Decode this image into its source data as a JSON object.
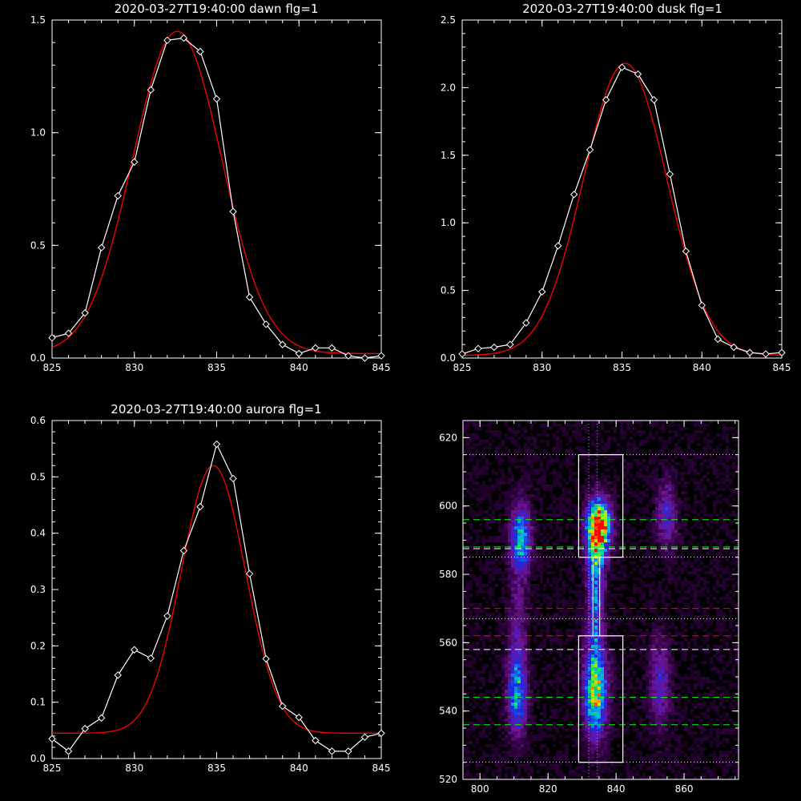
{
  "colors": {
    "background": "#000000",
    "axes": "#ffffff",
    "data_line": "#ffffff",
    "fit_line": "#ff0000",
    "green_guides": "#00ff00",
    "red_guides": "#ff0000"
  },
  "chart_data": [
    {
      "type": "line",
      "title": "2020-03-27T19:40:00 dawn flg=1",
      "xlim": [
        825,
        845
      ],
      "ylim": [
        0,
        1.5
      ],
      "xticks": [
        "825",
        "830",
        "835",
        "840",
        "845"
      ],
      "yticks": [
        "0.0",
        "0.5",
        "1.0",
        "1.5"
      ],
      "series": [
        {
          "marker": "diamond",
          "x": [
            825,
            826,
            827,
            828,
            829,
            830,
            831,
            832,
            833,
            834,
            835,
            836,
            837,
            838,
            839,
            840,
            841,
            842,
            843,
            844,
            845
          ],
          "y": [
            0.09,
            0.11,
            0.2,
            0.49,
            0.72,
            0.87,
            1.19,
            1.41,
            1.42,
            1.36,
            1.15,
            0.65,
            0.27,
            0.15,
            0.06,
            0.02,
            0.045,
            0.045,
            0.01,
            0.0,
            0.01
          ]
        },
        {
          "fit": {
            "amp": 1.43,
            "mu": 832.6,
            "sigma": 2.7,
            "base": 0.02
          }
        }
      ]
    },
    {
      "type": "line",
      "title": "2020-03-27T19:40:00 dusk flg=1",
      "xlim": [
        825,
        845
      ],
      "ylim": [
        0,
        2.5
      ],
      "xticks": [
        "825",
        "830",
        "835",
        "840",
        "845"
      ],
      "yticks": [
        "0.0",
        "0.5",
        "1.0",
        "1.5",
        "2.0",
        "2.5"
      ],
      "series": [
        {
          "marker": "diamond",
          "x": [
            825,
            826,
            827,
            828,
            829,
            830,
            831,
            832,
            833,
            834,
            835,
            836,
            837,
            838,
            839,
            840,
            841,
            842,
            843,
            844,
            845
          ],
          "y": [
            0.03,
            0.07,
            0.08,
            0.1,
            0.26,
            0.49,
            0.83,
            1.21,
            1.54,
            1.91,
            2.15,
            2.1,
            1.91,
            1.36,
            0.79,
            0.39,
            0.14,
            0.08,
            0.04,
            0.03,
            0.04
          ]
        },
        {
          "fit": {
            "amp": 2.16,
            "mu": 835.2,
            "sigma": 2.6,
            "base": 0.02
          }
        }
      ]
    },
    {
      "type": "line",
      "title": "2020-03-27T19:40:00 aurora flg=1",
      "xlim": [
        825,
        845
      ],
      "ylim": [
        0,
        0.6
      ],
      "xticks": [
        "825",
        "830",
        "835",
        "840",
        "845"
      ],
      "yticks": [
        "0.0",
        "0.1",
        "0.2",
        "0.3",
        "0.4",
        "0.5",
        "0.6"
      ],
      "series": [
        {
          "marker": "diamond",
          "x": [
            825,
            826,
            827,
            828,
            829,
            830,
            831,
            832,
            833,
            834,
            835,
            836,
            837,
            838,
            839,
            840,
            841,
            842,
            843,
            844,
            845
          ],
          "y": [
            0.035,
            0.013,
            0.053,
            0.072,
            0.148,
            0.193,
            0.178,
            0.253,
            0.369,
            0.447,
            0.558,
            0.497,
            0.328,
            0.177,
            0.093,
            0.073,
            0.032,
            0.013,
            0.013,
            0.038,
            0.045
          ]
        },
        {
          "fit": {
            "amp": 0.475,
            "mu": 834.8,
            "sigma": 1.95,
            "base": 0.045
          }
        }
      ]
    },
    {
      "type": "heatmap",
      "xlim": [
        795,
        876
      ],
      "ylim": [
        520,
        625
      ],
      "xticks": [
        "800",
        "820",
        "840",
        "860"
      ],
      "yticks": [
        "520",
        "540",
        "560",
        "580",
        "600",
        "620"
      ],
      "boxes": [
        {
          "x": [
            829,
            842
          ],
          "y": [
            585,
            615
          ]
        },
        {
          "x": [
            829,
            842
          ],
          "y": [
            525,
            562
          ]
        }
      ],
      "hlines_green_dashed": [
        596,
        588,
        544,
        536
      ],
      "hlines_white_dashed": [
        587.5,
        558
      ],
      "hlines_red_dashed": [
        570,
        562
      ],
      "hlines_white_dotted": [
        615,
        585,
        567,
        525
      ],
      "vlines_dotted": [
        832,
        834.5
      ],
      "hot_spots": [
        {
          "x": 835,
          "y": 594,
          "sx": 2.4,
          "sy": 5.5,
          "amp": 1.0
        },
        {
          "x": 834,
          "y": 582,
          "sx": 1.8,
          "sy": 9,
          "amp": 0.45
        },
        {
          "x": 834,
          "y": 566,
          "sx": 1.5,
          "sy": 7,
          "amp": 0.28
        },
        {
          "x": 834,
          "y": 546,
          "sx": 2.3,
          "sy": 9,
          "amp": 0.8
        },
        {
          "x": 812,
          "y": 590,
          "sx": 2.0,
          "sy": 7,
          "amp": 0.6
        },
        {
          "x": 811,
          "y": 545,
          "sx": 2.0,
          "sy": 8,
          "amp": 0.55
        },
        {
          "x": 811,
          "y": 565,
          "sx": 1.8,
          "sy": 9,
          "amp": 0.2
        },
        {
          "x": 855,
          "y": 597,
          "sx": 2.0,
          "sy": 7,
          "amp": 0.32
        },
        {
          "x": 853,
          "y": 548,
          "sx": 2.2,
          "sy": 9,
          "amp": 0.3
        }
      ]
    }
  ]
}
